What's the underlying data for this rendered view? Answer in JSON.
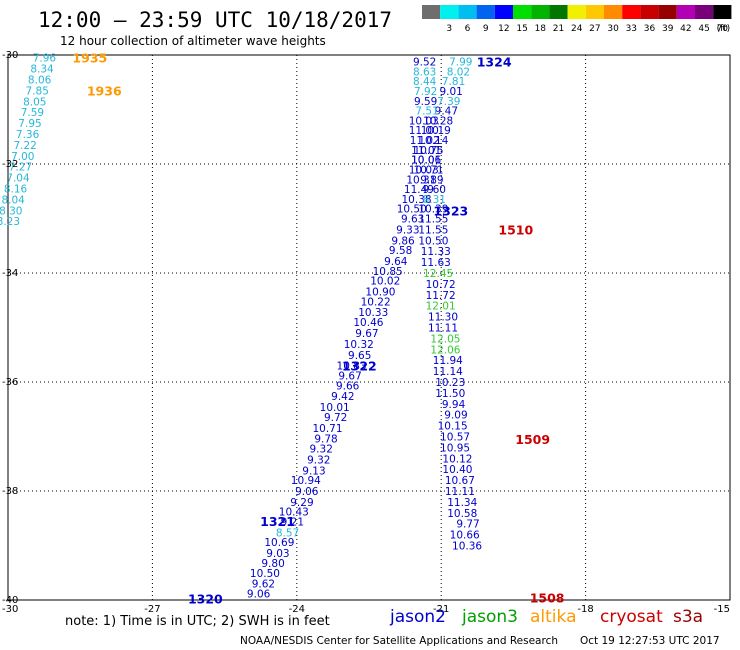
{
  "header": {
    "title": "12:00 – 23:59 UTC 10/18/2017",
    "subtitle": "12 hour collection of altimeter wave heights"
  },
  "legend": {
    "unit": "(ft)",
    "bins": [
      {
        "label": "",
        "color": "#6e6e6e"
      },
      {
        "label": "3",
        "color": "#00f0f0"
      },
      {
        "label": "6",
        "color": "#00bff0"
      },
      {
        "label": "9",
        "color": "#0064f0"
      },
      {
        "label": "12",
        "color": "#0000ff"
      },
      {
        "label": "15",
        "color": "#00e000"
      },
      {
        "label": "18",
        "color": "#00b400"
      },
      {
        "label": "21",
        "color": "#007800"
      },
      {
        "label": "24",
        "color": "#f0f000"
      },
      {
        "label": "27",
        "color": "#ffc800"
      },
      {
        "label": "30",
        "color": "#ff8c00"
      },
      {
        "label": "33",
        "color": "#ff0000"
      },
      {
        "label": "36",
        "color": "#c80000"
      },
      {
        "label": "39",
        "color": "#960000"
      },
      {
        "label": "42",
        "color": "#b400b4"
      },
      {
        "label": "45",
        "color": "#780078"
      },
      {
        "label": "70",
        "color": "#000000"
      }
    ]
  },
  "satellites": {
    "jason2": {
      "label": "jason2",
      "color": "#0000cc"
    },
    "jason3": {
      "label": "jason3",
      "color": "#00a000"
    },
    "altika": {
      "label": "altika",
      "color": "#ff9900"
    },
    "cryosat": {
      "label": "cryosat",
      "color": "#cc0000"
    },
    "s3a": {
      "label": "s3a",
      "color": "#990000"
    }
  },
  "footer": {
    "note": "note:  1) Time is in UTC;  2) SWH is in feet",
    "credit": "NOAA/NESDIS Center for Satellite Applications and Research",
    "timestamp": "Oct 19 12:27:53 UTC 2017"
  },
  "chart_data": {
    "type": "scatter",
    "title": "12:00 – 23:59 UTC 10/18/2017",
    "subtitle": "12 hour collection of altimeter wave heights",
    "xlim": [
      -30,
      -15
    ],
    "ylim": [
      -40,
      -30
    ],
    "x_ticks": [
      -30,
      -27,
      -24,
      -21,
      -18,
      -15
    ],
    "y_ticks": [
      -30,
      -32,
      -34,
      -36,
      -38,
      -40
    ],
    "x_tick_labels": [
      "-30",
      "-27",
      "-24",
      "-21",
      "-18",
      "-15"
    ],
    "y_tick_labels": [
      "-30",
      "-32",
      "-34",
      "-36",
      "-38",
      "-40"
    ],
    "grid": true,
    "value_units": "ft",
    "tracks": [
      {
        "satellite": "altika",
        "label_color": "#ff9900",
        "value_color": "#26b8d8",
        "times": [
          {
            "text": "1935",
            "x": -28.3,
            "y": -30.05
          },
          {
            "text": "1936",
            "x": -28.0,
            "y": -30.65
          }
        ],
        "points": [
          {
            "x": -29.0,
            "y": -30.05,
            "v": "7.96"
          },
          {
            "x": -29.05,
            "y": -30.25,
            "v": "8.34"
          },
          {
            "x": -29.1,
            "y": -30.45,
            "v": "8.06"
          },
          {
            "x": -29.15,
            "y": -30.65,
            "v": "7.85"
          },
          {
            "x": -29.2,
            "y": -30.85,
            "v": "8.05"
          },
          {
            "x": -29.25,
            "y": -31.05,
            "v": "7.59"
          },
          {
            "x": -29.3,
            "y": -31.25,
            "v": "7.95"
          },
          {
            "x": -29.35,
            "y": -31.45,
            "v": "7.36"
          },
          {
            "x": -29.4,
            "y": -31.65,
            "v": "7.22"
          },
          {
            "x": -29.45,
            "y": -31.85,
            "v": "7.00"
          },
          {
            "x": -29.5,
            "y": -32.05,
            "v": "7.27"
          },
          {
            "x": -29.55,
            "y": -32.25,
            "v": "7.04"
          },
          {
            "x": -29.6,
            "y": -32.45,
            "v": "8.16"
          },
          {
            "x": -29.65,
            "y": -32.65,
            "v": "8.04"
          },
          {
            "x": -29.7,
            "y": -32.85,
            "v": "8.30"
          },
          {
            "x": -29.75,
            "y": -33.05,
            "v": "8.23"
          }
        ]
      },
      {
        "satellite": "jason2",
        "label_color": "#0000cc",
        "value_color": "#0000cc",
        "times": [
          {
            "text": "1324",
            "x": -19.9,
            "y": -30.12
          },
          {
            "text": "1323",
            "x": -20.8,
            "y": -32.85
          },
          {
            "text": "1322",
            "x": -22.7,
            "y": -35.7
          },
          {
            "text": "1321",
            "x": -24.4,
            "y": -38.55
          },
          {
            "text": "1320",
            "x": -25.9,
            "y": -39.97
          }
        ],
        "points": [
          {
            "x": -20.35,
            "y": -30.12,
            "v": "7.99"
          },
          {
            "x": -20.4,
            "y": -30.3,
            "v": "8.02"
          },
          {
            "x": -20.5,
            "y": -30.48,
            "v": "7.81"
          },
          {
            "x": -20.55,
            "y": -30.66,
            "v": "9.01"
          },
          {
            "x": -20.6,
            "y": -30.84,
            "v": "7.39"
          },
          {
            "x": -20.65,
            "y": -31.02,
            "v": "9.47"
          },
          {
            "x": -20.75,
            "y": -31.2,
            "v": "10.28"
          },
          {
            "x": -20.8,
            "y": -31.38,
            "v": "10.19"
          },
          {
            "x": -20.85,
            "y": -31.56,
            "v": "10.14"
          },
          {
            "x": -20.95,
            "y": -31.74,
            "v": "10.75"
          },
          {
            "x": -21.0,
            "y": -31.92,
            "v": "10.06"
          },
          {
            "x": -21.05,
            "y": -32.1,
            "v": "10.03"
          },
          {
            "x": -21.1,
            "y": -32.28,
            "v": "10.31"
          },
          {
            "x": -21.15,
            "y": -32.46,
            "v": "11.49"
          },
          {
            "x": -21.2,
            "y": -32.64,
            "v": "10.38"
          },
          {
            "x": -21.3,
            "y": -32.82,
            "v": "10.50"
          },
          {
            "x": -21.35,
            "y": -33.0,
            "v": "9.63"
          },
          {
            "x": -21.45,
            "y": -33.2,
            "v": "9.33"
          },
          {
            "x": -21.55,
            "y": -33.4,
            "v": "9.86"
          },
          {
            "x": -21.6,
            "y": -33.58,
            "v": "9.58"
          },
          {
            "x": -21.7,
            "y": -33.78,
            "v": "9.64"
          },
          {
            "x": -21.8,
            "y": -33.96,
            "v": "10.85"
          },
          {
            "x": -21.85,
            "y": -34.14,
            "v": "10.02"
          },
          {
            "x": -21.95,
            "y": -34.34,
            "v": "10.90"
          },
          {
            "x": -22.05,
            "y": -34.52,
            "v": "10.22"
          },
          {
            "x": -22.1,
            "y": -34.72,
            "v": "10.33"
          },
          {
            "x": -22.2,
            "y": -34.9,
            "v": "10.46"
          },
          {
            "x": -22.3,
            "y": -35.1,
            "v": "9.67"
          },
          {
            "x": -22.4,
            "y": -35.3,
            "v": "10.32"
          },
          {
            "x": -22.45,
            "y": -35.5,
            "v": "9.65"
          },
          {
            "x": -22.55,
            "y": -35.7,
            "v": "10.83"
          },
          {
            "x": -22.65,
            "y": -35.88,
            "v": "9.67"
          },
          {
            "x": -22.7,
            "y": -36.06,
            "v": "9.66"
          },
          {
            "x": -22.8,
            "y": -36.26,
            "v": "9.42"
          },
          {
            "x": -22.9,
            "y": -36.46,
            "v": "10.01"
          },
          {
            "x": -22.95,
            "y": -36.64,
            "v": "9.72"
          },
          {
            "x": -23.05,
            "y": -36.84,
            "v": "10.71"
          },
          {
            "x": -23.15,
            "y": -37.04,
            "v": "9.78"
          },
          {
            "x": -23.25,
            "y": -37.22,
            "v": "9.32"
          },
          {
            "x": -23.3,
            "y": -37.42,
            "v": "9.32"
          },
          {
            "x": -23.4,
            "y": -37.62,
            "v": "9.13"
          },
          {
            "x": -23.5,
            "y": -37.8,
            "v": "10.94"
          },
          {
            "x": -23.55,
            "y": -38.0,
            "v": "9.06"
          },
          {
            "x": -23.65,
            "y": -38.2,
            "v": "9.29"
          },
          {
            "x": -23.75,
            "y": -38.38,
            "v": "10.43"
          },
          {
            "x": -23.85,
            "y": -38.56,
            "v": "9.21"
          },
          {
            "x": -23.95,
            "y": -38.76,
            "v": "8.57"
          },
          {
            "x": -24.05,
            "y": -38.94,
            "v": "10.69"
          },
          {
            "x": -24.15,
            "y": -39.14,
            "v": "9.03"
          },
          {
            "x": -24.25,
            "y": -39.32,
            "v": "9.80"
          },
          {
            "x": -24.35,
            "y": -39.5,
            "v": "10.50"
          },
          {
            "x": -24.45,
            "y": -39.7,
            "v": "9.62"
          },
          {
            "x": -24.55,
            "y": -39.88,
            "v": "9.06"
          }
        ]
      },
      {
        "satellite": "cryosat",
        "label_color": "#cc0000",
        "value_color": "#0000cc",
        "times": [
          {
            "text": "1510",
            "x": -19.45,
            "y": -33.2
          },
          {
            "text": "1509",
            "x": -19.1,
            "y": -37.05
          },
          {
            "text": "1508",
            "x": -18.8,
            "y": -39.95
          }
        ],
        "points": [
          {
            "x": -21.1,
            "y": -30.12,
            "v": "9.52"
          },
          {
            "x": -21.1,
            "y": -30.3,
            "v": "8.63"
          },
          {
            "x": -21.1,
            "y": -30.48,
            "v": "8.44"
          },
          {
            "x": -21.08,
            "y": -30.66,
            "v": "7.92"
          },
          {
            "x": -21.08,
            "y": -30.84,
            "v": "9.59"
          },
          {
            "x": -21.05,
            "y": -31.02,
            "v": "7.51"
          },
          {
            "x": -21.05,
            "y": -31.2,
            "v": "10.03"
          },
          {
            "x": -21.05,
            "y": -31.38,
            "v": "11.00"
          },
          {
            "x": -21.03,
            "y": -31.56,
            "v": "11.02"
          },
          {
            "x": -21.0,
            "y": -31.74,
            "v": "11.01"
          },
          {
            "x": -21.0,
            "y": -31.92,
            "v": "10.01"
          },
          {
            "x": -20.95,
            "y": -32.1,
            "v": "10.71"
          },
          {
            "x": -20.95,
            "y": -32.28,
            "v": "9.89"
          },
          {
            "x": -20.9,
            "y": -32.46,
            "v": "9.60"
          },
          {
            "x": -20.9,
            "y": -32.64,
            "v": "8.31"
          },
          {
            "x": -20.85,
            "y": -32.82,
            "v": "10.39"
          },
          {
            "x": -20.85,
            "y": -33.0,
            "v": "11.55"
          },
          {
            "x": -20.85,
            "y": -33.2,
            "v": "11.55"
          },
          {
            "x": -20.85,
            "y": -33.4,
            "v": "10.50"
          },
          {
            "x": -20.8,
            "y": -33.6,
            "v": "11.33"
          },
          {
            "x": -20.8,
            "y": -33.8,
            "v": "11.63"
          },
          {
            "x": -20.75,
            "y": -34.0,
            "v": "12.45"
          },
          {
            "x": -20.7,
            "y": -34.2,
            "v": "10.72"
          },
          {
            "x": -20.7,
            "y": -34.4,
            "v": "11.72"
          },
          {
            "x": -20.7,
            "y": -34.6,
            "v": "12.01"
          },
          {
            "x": -20.65,
            "y": -34.8,
            "v": "11.30"
          },
          {
            "x": -20.65,
            "y": -35.0,
            "v": "11.11"
          },
          {
            "x": -20.6,
            "y": -35.2,
            "v": "12.05"
          },
          {
            "x": -20.6,
            "y": -35.4,
            "v": "12.06"
          },
          {
            "x": -20.55,
            "y": -35.6,
            "v": "11.94"
          },
          {
            "x": -20.55,
            "y": -35.8,
            "v": "11.14"
          },
          {
            "x": -20.5,
            "y": -36.0,
            "v": "10.23"
          },
          {
            "x": -20.5,
            "y": -36.2,
            "v": "11.50"
          },
          {
            "x": -20.5,
            "y": -36.4,
            "v": "9.94"
          },
          {
            "x": -20.45,
            "y": -36.6,
            "v": "9.09"
          },
          {
            "x": -20.45,
            "y": -36.8,
            "v": "10.15"
          },
          {
            "x": -20.4,
            "y": -37.0,
            "v": "10.57"
          },
          {
            "x": -20.4,
            "y": -37.2,
            "v": "10.95"
          },
          {
            "x": -20.35,
            "y": -37.4,
            "v": "10.12"
          },
          {
            "x": -20.35,
            "y": -37.6,
            "v": "10.40"
          },
          {
            "x": -20.3,
            "y": -37.8,
            "v": "10.67"
          },
          {
            "x": -20.3,
            "y": -38.0,
            "v": "11.11"
          },
          {
            "x": -20.25,
            "y": -38.2,
            "v": "11.34"
          },
          {
            "x": -20.25,
            "y": -38.4,
            "v": "10.58"
          },
          {
            "x": -20.2,
            "y": -38.6,
            "v": "9.77"
          },
          {
            "x": -20.2,
            "y": -38.8,
            "v": "10.66"
          },
          {
            "x": -20.15,
            "y": -39.0,
            "v": "10.36"
          }
        ]
      }
    ]
  }
}
